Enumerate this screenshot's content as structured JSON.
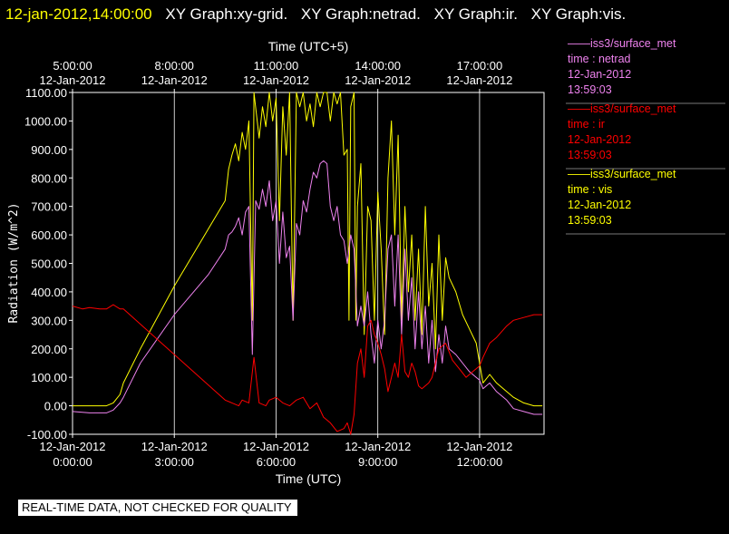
{
  "title_bar": {
    "timestamp": "12-jan-2012,14:00:00",
    "graphs": [
      "XY Graph:xy-grid.",
      "XY Graph:netrad.",
      "XY Graph:ir.",
      "XY Graph:vis."
    ],
    "timestamp_color": "#ffff00",
    "graph_color": "#ffffff"
  },
  "disclaimer": "REAL-TIME DATA, NOT CHECKED FOR QUALITY",
  "legend": [
    {
      "lines": [
        "——iss3/surface_met",
        "time : netrad",
        "12-Jan-2012",
        "13:59:03"
      ],
      "color": "#ee82ee"
    },
    {
      "lines": [
        "——iss3/surface_met",
        "time : ir",
        "12-Jan-2012",
        "13:59:03"
      ],
      "color": "#ff0000"
    },
    {
      "lines": [
        "——iss3/surface_met",
        "time : vis",
        "12-Jan-2012",
        "13:59:03"
      ],
      "color": "#ffff00"
    }
  ],
  "chart_data": {
    "type": "line",
    "ylabel": "Radiation (W/m^2)",
    "ylim": [
      -100,
      1100
    ],
    "yticks": [
      "-100.00",
      "0.00",
      "100.00",
      "200.00",
      "300.00",
      "400.00",
      "500.00",
      "600.00",
      "700.00",
      "800.00",
      "900.00",
      "1000.00",
      "1100.00"
    ],
    "xlabel_bottom": "Time (UTC)",
    "xlabel_top": "Time (UTC+5)",
    "xlim_hours_utc": [
      0,
      13.9
    ],
    "grid": "vertical",
    "bottom_ticks": [
      {
        "hour": 0,
        "date": "12-Jan-2012",
        "time": "0:00:00"
      },
      {
        "hour": 3,
        "date": "12-Jan-2012",
        "time": "3:00:00"
      },
      {
        "hour": 6,
        "date": "12-Jan-2012",
        "time": "6:00:00"
      },
      {
        "hour": 9,
        "date": "12-Jan-2012",
        "time": "9:00:00"
      },
      {
        "hour": 12,
        "date": "12-Jan-2012",
        "time": "12:00:00"
      }
    ],
    "top_ticks": [
      {
        "hour": 0,
        "time": "5:00:00",
        "date": "12-Jan-2012"
      },
      {
        "hour": 3,
        "time": "8:00:00",
        "date": "12-Jan-2012"
      },
      {
        "hour": 6,
        "time": "11:00:00",
        "date": "12-Jan-2012"
      },
      {
        "hour": 9,
        "time": "14:00:00",
        "date": "12-Jan-2012"
      },
      {
        "hour": 12,
        "time": "17:00:00",
        "date": "12-Jan-2012"
      }
    ],
    "series": [
      {
        "name": "vis",
        "color": "#ffff00",
        "points": [
          [
            0.0,
            0
          ],
          [
            0.5,
            0
          ],
          [
            1.0,
            0
          ],
          [
            1.2,
            10
          ],
          [
            1.4,
            40
          ],
          [
            1.5,
            80
          ],
          [
            2.0,
            200
          ],
          [
            3.0,
            420
          ],
          [
            4.0,
            620
          ],
          [
            4.5,
            720
          ],
          [
            4.6,
            830
          ],
          [
            4.7,
            880
          ],
          [
            4.8,
            920
          ],
          [
            4.9,
            860
          ],
          [
            5.0,
            960
          ],
          [
            5.1,
            900
          ],
          [
            5.2,
            1000
          ],
          [
            5.3,
            300
          ],
          [
            5.35,
            1100
          ],
          [
            5.5,
            940
          ],
          [
            5.6,
            1050
          ],
          [
            5.7,
            980
          ],
          [
            5.8,
            1100
          ],
          [
            5.9,
            1000
          ],
          [
            6.0,
            1080
          ],
          [
            6.1,
            650
          ],
          [
            6.2,
            1050
          ],
          [
            6.3,
            880
          ],
          [
            6.4,
            1100
          ],
          [
            6.5,
            300
          ],
          [
            6.6,
            1100
          ],
          [
            6.7,
            1050
          ],
          [
            6.8,
            1100
          ],
          [
            6.9,
            1000
          ],
          [
            7.0,
            1060
          ],
          [
            7.1,
            980
          ],
          [
            7.2,
            1100
          ],
          [
            7.3,
            1050
          ],
          [
            7.4,
            1100
          ],
          [
            7.5,
            1100
          ],
          [
            7.6,
            1000
          ],
          [
            7.7,
            1100
          ],
          [
            7.8,
            1060
          ],
          [
            7.9,
            1100
          ],
          [
            8.0,
            880
          ],
          [
            8.1,
            900
          ],
          [
            8.15,
            300
          ],
          [
            8.2,
            1050
          ],
          [
            8.3,
            1100
          ],
          [
            8.35,
            300
          ],
          [
            8.4,
            700
          ],
          [
            8.5,
            850
          ],
          [
            8.6,
            250
          ],
          [
            8.7,
            700
          ],
          [
            8.8,
            650
          ],
          [
            8.9,
            300
          ],
          [
            9.0,
            750
          ],
          [
            9.1,
            550
          ],
          [
            9.2,
            250
          ],
          [
            9.3,
            800
          ],
          [
            9.4,
            1000
          ],
          [
            9.5,
            600
          ],
          [
            9.6,
            950
          ],
          [
            9.7,
            300
          ],
          [
            9.8,
            700
          ],
          [
            9.9,
            400
          ],
          [
            10.0,
            600
          ],
          [
            10.1,
            300
          ],
          [
            10.2,
            550
          ],
          [
            10.3,
            250
          ],
          [
            10.4,
            700
          ],
          [
            10.5,
            350
          ],
          [
            10.6,
            500
          ],
          [
            10.7,
            200
          ],
          [
            10.8,
            600
          ],
          [
            10.9,
            300
          ],
          [
            11.0,
            520
          ],
          [
            11.1,
            450
          ],
          [
            11.3,
            400
          ],
          [
            11.5,
            320
          ],
          [
            11.7,
            270
          ],
          [
            11.9,
            220
          ],
          [
            12.0,
            150
          ],
          [
            12.1,
            80
          ],
          [
            12.3,
            110
          ],
          [
            12.5,
            80
          ],
          [
            12.8,
            50
          ],
          [
            13.0,
            30
          ],
          [
            13.3,
            10
          ],
          [
            13.6,
            0
          ],
          [
            13.85,
            0
          ]
        ]
      },
      {
        "name": "netrad",
        "color": "#ee82ee",
        "points": [
          [
            0.0,
            -20
          ],
          [
            0.5,
            -25
          ],
          [
            1.0,
            -25
          ],
          [
            1.2,
            -15
          ],
          [
            1.4,
            10
          ],
          [
            1.5,
            30
          ],
          [
            2.0,
            150
          ],
          [
            3.0,
            320
          ],
          [
            4.0,
            460
          ],
          [
            4.5,
            550
          ],
          [
            4.6,
            600
          ],
          [
            4.7,
            610
          ],
          [
            4.8,
            630
          ],
          [
            4.9,
            660
          ],
          [
            5.0,
            600
          ],
          [
            5.1,
            680
          ],
          [
            5.2,
            700
          ],
          [
            5.3,
            180
          ],
          [
            5.4,
            720
          ],
          [
            5.5,
            690
          ],
          [
            5.6,
            760
          ],
          [
            5.7,
            700
          ],
          [
            5.8,
            790
          ],
          [
            5.9,
            650
          ],
          [
            6.0,
            720
          ],
          [
            6.1,
            500
          ],
          [
            6.2,
            680
          ],
          [
            6.3,
            520
          ],
          [
            6.4,
            560
          ],
          [
            6.5,
            300
          ],
          [
            6.6,
            640
          ],
          [
            6.7,
            600
          ],
          [
            6.8,
            720
          ],
          [
            6.9,
            680
          ],
          [
            7.0,
            760
          ],
          [
            7.1,
            820
          ],
          [
            7.2,
            800
          ],
          [
            7.3,
            850
          ],
          [
            7.4,
            860
          ],
          [
            7.5,
            850
          ],
          [
            7.6,
            700
          ],
          [
            7.7,
            650
          ],
          [
            7.8,
            700
          ],
          [
            7.9,
            600
          ],
          [
            8.0,
            580
          ],
          [
            8.1,
            500
          ],
          [
            8.2,
            600
          ],
          [
            8.3,
            550
          ],
          [
            8.4,
            280
          ],
          [
            8.5,
            350
          ],
          [
            8.6,
            280
          ],
          [
            8.7,
            400
          ],
          [
            8.8,
            250
          ],
          [
            8.9,
            150
          ],
          [
            9.0,
            300
          ],
          [
            9.1,
            200
          ],
          [
            9.2,
            300
          ],
          [
            9.3,
            550
          ],
          [
            9.4,
            600
          ],
          [
            9.5,
            350
          ],
          [
            9.6,
            600
          ],
          [
            9.7,
            250
          ],
          [
            9.8,
            550
          ],
          [
            9.9,
            300
          ],
          [
            10.0,
            450
          ],
          [
            10.1,
            200
          ],
          [
            10.2,
            400
          ],
          [
            10.3,
            200
          ],
          [
            10.4,
            350
          ],
          [
            10.5,
            150
          ],
          [
            10.6,
            300
          ],
          [
            10.7,
            120
          ],
          [
            10.8,
            250
          ],
          [
            10.9,
            150
          ],
          [
            11.0,
            280
          ],
          [
            11.1,
            200
          ],
          [
            11.3,
            180
          ],
          [
            11.5,
            150
          ],
          [
            11.7,
            120
          ],
          [
            11.9,
            100
          ],
          [
            12.0,
            90
          ],
          [
            12.1,
            60
          ],
          [
            12.3,
            80
          ],
          [
            12.5,
            50
          ],
          [
            12.8,
            20
          ],
          [
            13.0,
            -10
          ],
          [
            13.3,
            -20
          ],
          [
            13.6,
            -30
          ],
          [
            13.85,
            -30
          ]
        ]
      },
      {
        "name": "ir",
        "color": "#ff0000",
        "points": [
          [
            0.0,
            350
          ],
          [
            0.3,
            340
          ],
          [
            0.5,
            345
          ],
          [
            0.8,
            340
          ],
          [
            1.0,
            340
          ],
          [
            1.2,
            355
          ],
          [
            1.4,
            340
          ],
          [
            1.5,
            340
          ],
          [
            4.5,
            20
          ],
          [
            4.7,
            10
          ],
          [
            4.9,
            0
          ],
          [
            5.0,
            20
          ],
          [
            5.2,
            10
          ],
          [
            5.35,
            170
          ],
          [
            5.5,
            10
          ],
          [
            5.7,
            0
          ],
          [
            5.8,
            20
          ],
          [
            6.0,
            30
          ],
          [
            6.2,
            10
          ],
          [
            6.4,
            0
          ],
          [
            6.6,
            20
          ],
          [
            6.8,
            30
          ],
          [
            7.0,
            -10
          ],
          [
            7.2,
            10
          ],
          [
            7.4,
            -40
          ],
          [
            7.6,
            -60
          ],
          [
            7.8,
            -90
          ],
          [
            8.0,
            -80
          ],
          [
            8.1,
            -60
          ],
          [
            8.2,
            -100
          ],
          [
            8.3,
            -30
          ],
          [
            8.4,
            150
          ],
          [
            8.5,
            200
          ],
          [
            8.6,
            100
          ],
          [
            8.7,
            280
          ],
          [
            8.8,
            300
          ],
          [
            8.9,
            250
          ],
          [
            9.0,
            220
          ],
          [
            9.1,
            180
          ],
          [
            9.2,
            130
          ],
          [
            9.3,
            50
          ],
          [
            9.4,
            100
          ],
          [
            9.5,
            150
          ],
          [
            9.6,
            100
          ],
          [
            9.7,
            250
          ],
          [
            9.8,
            120
          ],
          [
            9.9,
            100
          ],
          [
            10.0,
            150
          ],
          [
            10.1,
            120
          ],
          [
            10.2,
            70
          ],
          [
            10.3,
            60
          ],
          [
            10.5,
            80
          ],
          [
            10.6,
            100
          ],
          [
            10.8,
            200
          ],
          [
            11.0,
            220
          ],
          [
            11.2,
            160
          ],
          [
            11.4,
            130
          ],
          [
            11.6,
            100
          ],
          [
            11.8,
            120
          ],
          [
            12.0,
            140
          ],
          [
            12.1,
            170
          ],
          [
            12.3,
            220
          ],
          [
            12.5,
            240
          ],
          [
            12.8,
            280
          ],
          [
            13.0,
            300
          ],
          [
            13.3,
            310
          ],
          [
            13.6,
            320
          ],
          [
            13.85,
            320
          ]
        ]
      }
    ]
  }
}
